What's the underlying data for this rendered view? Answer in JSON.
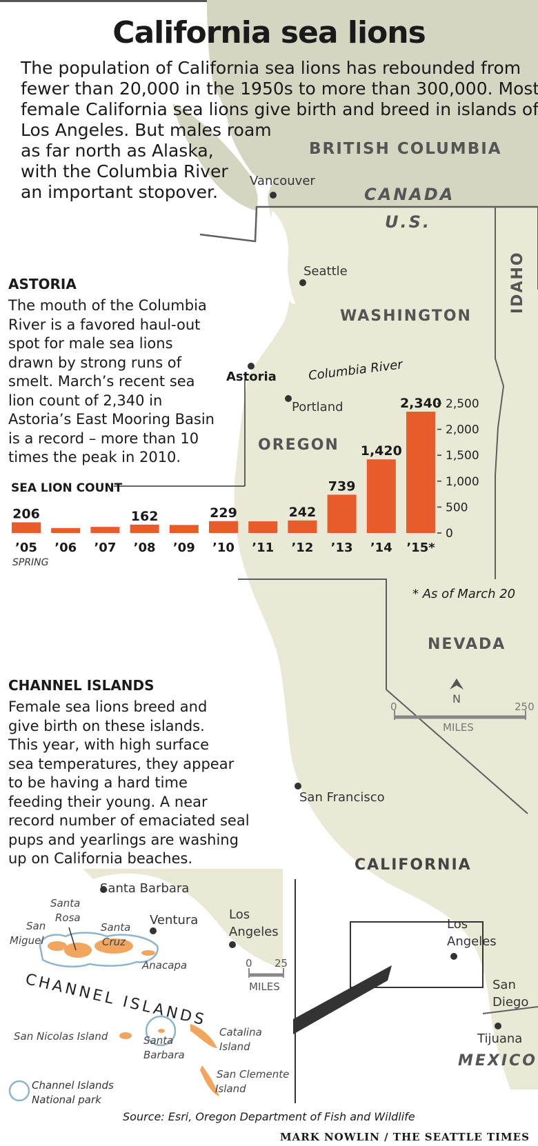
{
  "title": "California sea lions",
  "intro_lines": [
    "The population of California sea lions has rebounded from",
    "fewer than 20,000 in the 1950s to more than 300,000. Most",
    "female California sea lions give birth and breed in islands off",
    "Los Angeles. But males roam",
    "as far north as Alaska,",
    "with the Columbia River",
    "an important stopover."
  ],
  "astoria": {
    "heading": "ASTORIA",
    "lines": [
      "The mouth of the Columbia",
      "River is a favored haul-out",
      "spot for male sea lions",
      "drawn by strong runs of",
      "smelt. March’s recent sea",
      "lion count of 2,340 in",
      "Astoria’s East Mooring Basin",
      "is a record – more than 10",
      "times the peak in 2010."
    ]
  },
  "channel": {
    "heading": "CHANNEL ISLANDS",
    "lines": [
      "Female sea lions breed and",
      "give birth on these islands.",
      "This year, with high surface",
      "sea temperatures, they appear",
      "to be having a hard time",
      "feeding their young. A near",
      "record number of emaciated seal",
      "pups and yearlings are washing",
      "up on California beaches."
    ]
  },
  "map_labels": {
    "british_columbia": "BRITISH COLUMBIA",
    "canada": "CANADA",
    "us": "U.S.",
    "vancouver": "Vancouver",
    "seattle": "Seattle",
    "washington": "WASHINGTON",
    "idaho": "IDAHO",
    "astoria": "Astoria",
    "columbia_river": "Columbia River",
    "portland": "Portland",
    "oregon": "OREGON",
    "nevada": "NEVADA",
    "san_francisco": "San Francisco",
    "california": "CALIFORNIA",
    "los_angeles_1": "Los",
    "los_angeles_2": "Angeles",
    "san_diego_1": "San",
    "san_diego_2": "Diego",
    "tijuana": "Tijuana",
    "mexico": "MEXICO",
    "north": "N",
    "scale_zero": "0",
    "scale_max": "250",
    "scale_unit": "MILES"
  },
  "inset": {
    "santa_barbara": "Santa Barbara",
    "ventura": "Ventura",
    "los_angeles_1": "Los",
    "los_angeles_2": "Angeles",
    "santa_rosa_1": "Santa",
    "santa_rosa_2": "Rosa",
    "san_miguel_1": "San",
    "san_miguel_2": "Miguel",
    "santa_cruz_1": "Santa",
    "santa_cruz_2": "Cruz",
    "anacapa": "Anacapa",
    "scale_zero": "0",
    "scale_max": "25",
    "scale_unit": "MILES",
    "channel_islands": "CHANNEL ISLANDS",
    "san_nicolas": "San Nicolas Island",
    "santa_barbara_isl_1": "Santa",
    "santa_barbara_isl_2": "Barbara",
    "catalina_1": "Catalina",
    "catalina_2": "Island",
    "san_clemente_1": "San Clemente",
    "san_clemente_2": "Island",
    "legend_1": "Channel Islands",
    "legend_2": "National park"
  },
  "chart_data": {
    "type": "bar",
    "title": "SEA LION COUNT",
    "categories": [
      "’05",
      "’06",
      "’07",
      "’08",
      "’09",
      "’10",
      "’11",
      "’12",
      "’13",
      "’14",
      "’15*"
    ],
    "values": [
      206,
      96,
      118,
      162,
      155,
      229,
      225,
      242,
      739,
      1420,
      2340
    ],
    "value_labels": [
      "206",
      "",
      "",
      "162",
      "",
      "229",
      "",
      "242",
      "739",
      "1,420",
      "2,340"
    ],
    "x_note": "SPRING",
    "ylim": [
      0,
      2500
    ],
    "yticks": [
      0,
      500,
      1000,
      1500,
      2000,
      2500
    ],
    "ytick_labels": [
      "0",
      "500",
      "1,000",
      "1,500",
      "2,000",
      "2,500"
    ],
    "bar_color": "#e85c2c",
    "footnote": "* As of March 20"
  },
  "source": "Source: Esri, Oregon Department of Fish and Wildlife",
  "credit": "MARK NOWLIN / THE SEATTLE TIMES",
  "colors": {
    "land": "#e9e9d5",
    "canada_land": "#d4d6c2",
    "border": "#5e5e5e",
    "island_fill": "#f2a55c",
    "park_ring": "#8fb3cc"
  }
}
